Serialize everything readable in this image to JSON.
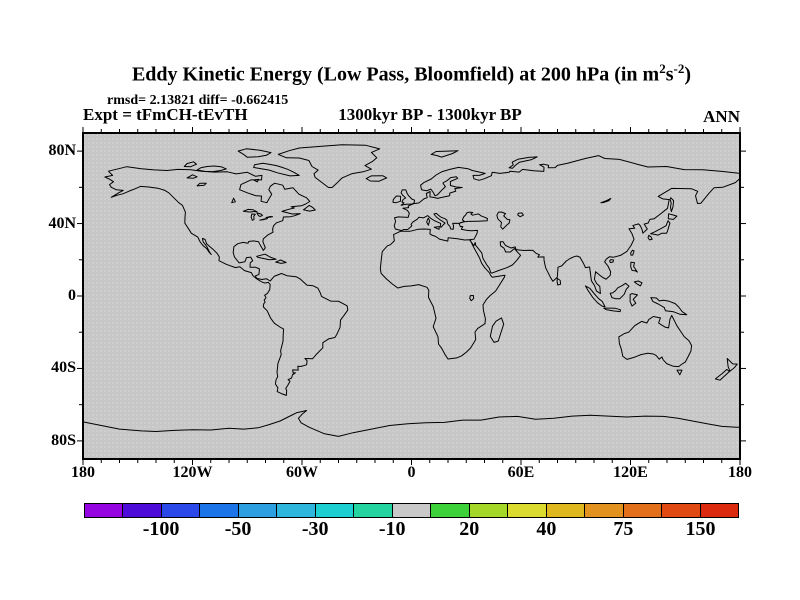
{
  "chart_data": {
    "type": "heatmap",
    "subtype": "global-latlon-difference-map",
    "title": "Eddy Kinetic Energy (Low Pass, Bloomfield) at 200 hPa (in m2 s-2)",
    "title_parts": {
      "pre": "Eddy Kinetic Energy (Low Pass, Bloomfield) at 200 hPa (in m",
      "sup1": "2",
      "mid": "s",
      "sup2": "-2",
      "post": ")"
    },
    "stats_line": "rmsd= 2.13821 diff= -0.662415",
    "rmsd": 2.13821,
    "diff": -0.662415,
    "experiment_line": "Expt = tFmCH-tEvTH",
    "period_line": "1300kyr BP - 1300kyr BP",
    "season": "ANN",
    "projection": "equirectangular",
    "lon_range": [
      -180,
      180
    ],
    "lat_range": [
      -90,
      90
    ],
    "grid": "off",
    "axes": {
      "x_tick_labels": [
        "180",
        "120W",
        "60W",
        "0",
        "60E",
        "120E",
        "180"
      ],
      "x_tick_lons": [
        -180,
        -120,
        -60,
        0,
        60,
        120,
        180
      ],
      "x_minor_step_deg": 10,
      "y_tick_labels": [
        "80N",
        "40N",
        "0",
        "40S",
        "80S"
      ],
      "y_tick_lats": [
        80,
        40,
        0,
        -40,
        -80
      ],
      "y_minor_step_deg": 20
    },
    "colorbar": {
      "position": "bottom",
      "levels": [
        -150,
        -100,
        -75,
        -50,
        -40,
        -30,
        -20,
        -10,
        10,
        20,
        30,
        40,
        50,
        75,
        100,
        150
      ],
      "tick_labels": [
        "-100",
        "-50",
        "-30",
        "-10",
        "20",
        "40",
        "75",
        "150"
      ],
      "colors": [
        "#9405E2",
        "#4E0CD8",
        "#2B49E8",
        "#1B74E8",
        "#2B9FE0",
        "#2EB6DC",
        "#1ECFD2",
        "#23D3A0",
        "#C9C9C9",
        "#3ED23A",
        "#A4D727",
        "#DADB2E",
        "#DFB71F",
        "#E2921E",
        "#E2701A",
        "#E04A12",
        "#DC2A0E"
      ]
    },
    "field": {
      "description": "Difference field lies within -10..10 everywhere, rendered as uniform gray; only black coastlines are visible on the map",
      "map_background": "#C7C7C7",
      "coastline_color": "#000000"
    }
  }
}
